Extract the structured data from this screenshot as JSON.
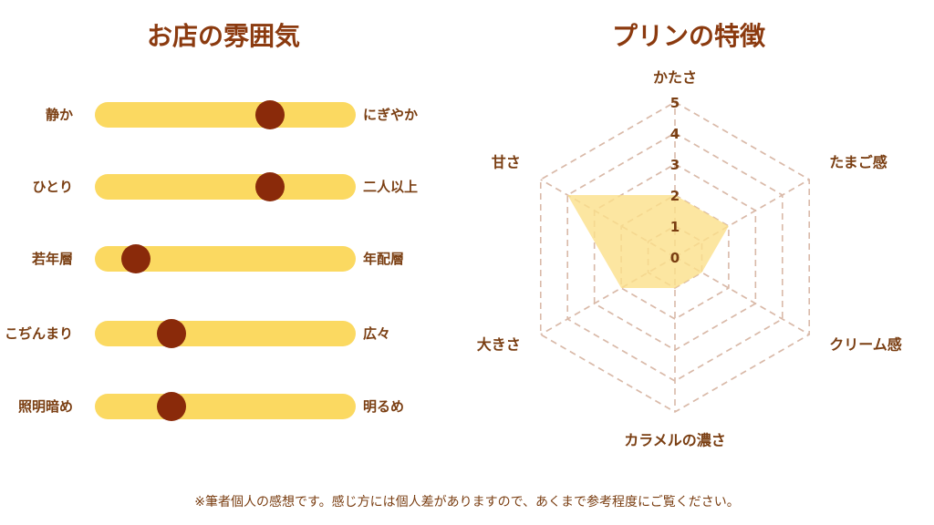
{
  "atmosphere": {
    "title": "お店の雰囲気",
    "scales": [
      {
        "left": "静か",
        "right": "にぎやか",
        "value": 0.69
      },
      {
        "left": "ひとり",
        "right": "二人以上",
        "value": 0.69
      },
      {
        "left": "若年層",
        "right": "年配層",
        "value": 0.12
      },
      {
        "left": "こぢんまり",
        "right": "広々",
        "value": 0.27
      },
      {
        "left": "照明暗め",
        "right": "明るめ",
        "value": 0.27
      }
    ],
    "colors": {
      "track": "#fbd961",
      "knob": "#8a2a0a"
    }
  },
  "pudding": {
    "title": "プリンの特徴"
  },
  "chart_data": {
    "type": "radar",
    "title": "プリンの特徴",
    "axes": [
      "かたさ",
      "たまご感",
      "クリーム感",
      "カラメルの濃さ",
      "大きさ",
      "甘さ"
    ],
    "scale_labels": [
      "0",
      "1",
      "2",
      "3",
      "4",
      "5"
    ],
    "range": [
      0,
      5
    ],
    "values": [
      2,
      2,
      1,
      1,
      2,
      4
    ],
    "fill_color": "#fbe08a",
    "grid_color": "#d9b9a8",
    "grid": true
  },
  "footnote": "※筆者個人の感想です。感じ方には個人差がありますので、あくまで参考程度にご覧ください。"
}
